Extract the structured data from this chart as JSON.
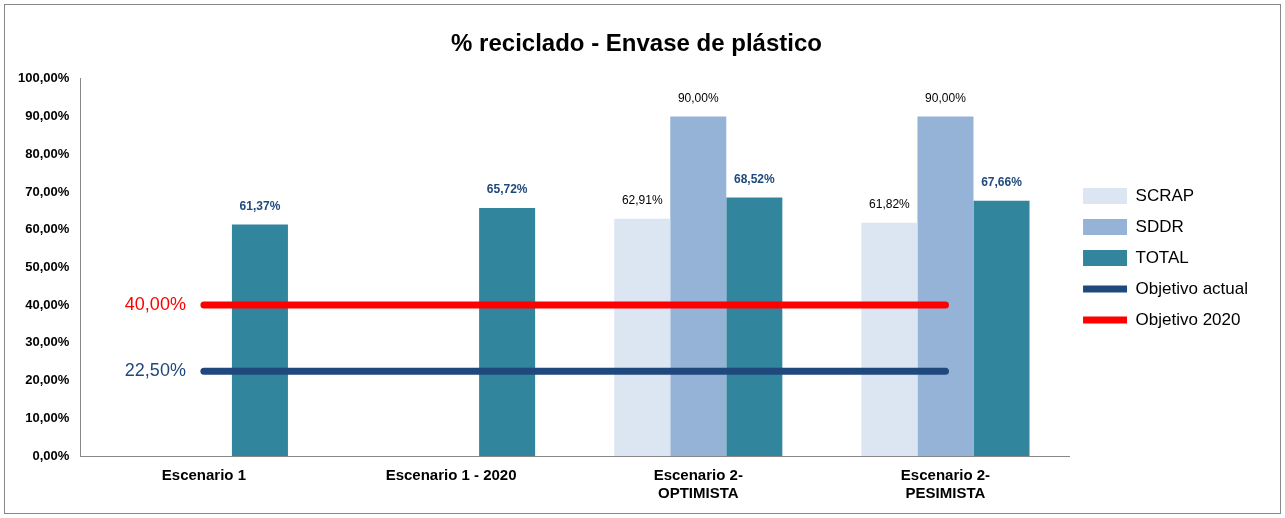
{
  "chart_data": {
    "type": "bar",
    "title": "% reciclado - Envase de plástico",
    "categories": [
      "Escenario 1",
      "Escenario 1 - 2020",
      "Escenario 2-OPTIMISTA",
      "Escenario 2-PESIMISTA"
    ],
    "series": [
      {
        "name": "SCRAP",
        "color": "#dce6f2",
        "values": [
          null,
          null,
          62.91,
          61.82
        ],
        "value_labels": [
          null,
          null,
          "62,91%",
          "61,82%"
        ]
      },
      {
        "name": "SDDR",
        "color": "#95b3d7",
        "values": [
          null,
          null,
          90,
          90
        ],
        "value_labels": [
          null,
          null,
          "90,00%",
          "90,00%"
        ]
      },
      {
        "name": "TOTAL",
        "color": "#31859c",
        "values": [
          61.37,
          65.72,
          68.52,
          67.66
        ],
        "value_labels": [
          "61,37%",
          "65,72%",
          "68,52%",
          "67,66%"
        ]
      },
      {
        "name": "Objetivo actual",
        "type": "line",
        "color": "#1f497d",
        "values": [
          22.5,
          22.5,
          22.5,
          22.5
        ],
        "value_labels": [
          "22,50%",
          null,
          null,
          null
        ]
      },
      {
        "name": "Objetivo 2020",
        "type": "line",
        "color": "#ff0000",
        "values": [
          40,
          40,
          40,
          40
        ],
        "value_labels": [
          "40,00%",
          null,
          null,
          null
        ]
      }
    ],
    "ylim": [
      0,
      100
    ],
    "yticks": [
      {
        "value": 0,
        "label": "0,00%"
      },
      {
        "value": 10,
        "label": "10,00%"
      },
      {
        "value": 20,
        "label": "20,00%"
      },
      {
        "value": 30,
        "label": "30,00%"
      },
      {
        "value": 40,
        "label": "40,00%"
      },
      {
        "value": 50,
        "label": "50,00%"
      },
      {
        "value": 60,
        "label": "60,00%"
      },
      {
        "value": 70,
        "label": "70,00%"
      },
      {
        "value": 80,
        "label": "80,00%"
      },
      {
        "value": 90,
        "label": "90,00%"
      },
      {
        "value": 100,
        "label": "100,00%"
      }
    ],
    "grid": false,
    "legend": "right",
    "marker": "none"
  }
}
